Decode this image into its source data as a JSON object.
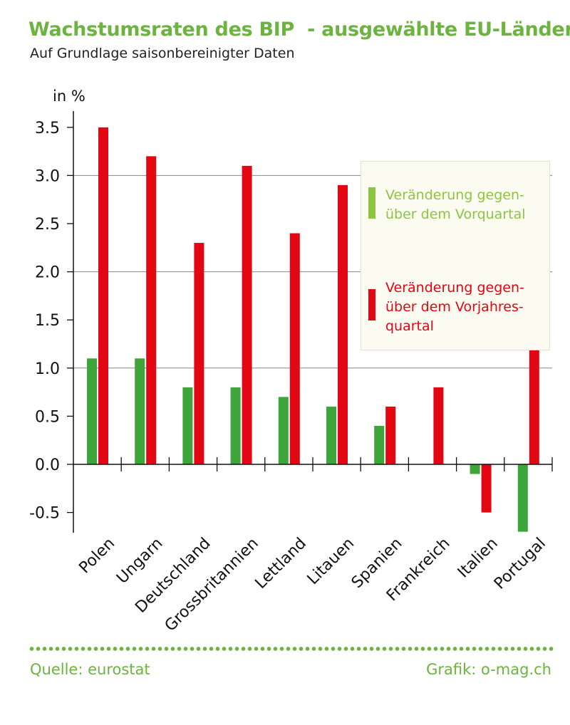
{
  "header": {
    "title": "Wachstumsraten des BIP  - ausgewählte EU-Länder",
    "subtitle": "Auf Grundlage saisonbereinigter Daten"
  },
  "legend": {
    "green_text": "Veränderung gegen-\nüber dem Vorquartal",
    "red_text": "Veränderung gegen-\nüber dem Vorjahres-\nquartal"
  },
  "footer": {
    "source": "Quelle: eurostat",
    "credit": "Grafik: o-mag.ch"
  },
  "colors": {
    "title": "#6db33f",
    "green_series": "#3da539",
    "red_series": "#e30613",
    "legend_green": "#8cc63f"
  },
  "chart_data": {
    "type": "bar",
    "ylabel": "in %",
    "ylim": [
      -0.7,
      3.7
    ],
    "yticks": [
      -0.5,
      0.0,
      0.5,
      1.0,
      1.5,
      2.0,
      2.5,
      3.0,
      3.5
    ],
    "ytick_labels": [
      "-0.5",
      "0.0",
      "0.5",
      "1.0",
      "1.5",
      "2.0",
      "2.5",
      "3.0",
      "3.5"
    ],
    "grid": "horizontal at 1.0, 2.0, 3.0",
    "categories": [
      "Polen",
      "Ungarn",
      "Deutschland",
      "Grossbritannien",
      "Lettland",
      "Litauen",
      "Spanien",
      "Frankreich",
      "Italien",
      "Portugal"
    ],
    "series": [
      {
        "name": "Veränderung gegenüber dem Vorquartal",
        "color": "#3da539",
        "values": [
          1.1,
          1.1,
          0.8,
          0.8,
          0.7,
          0.6,
          0.4,
          0.0,
          -0.1,
          -0.7
        ]
      },
      {
        "name": "Veränderung gegenüber dem Vorjahresquartal",
        "color": "#e30613",
        "values": [
          3.5,
          3.2,
          2.3,
          3.1,
          2.4,
          2.9,
          0.6,
          0.8,
          -0.5,
          1.2
        ]
      }
    ]
  }
}
